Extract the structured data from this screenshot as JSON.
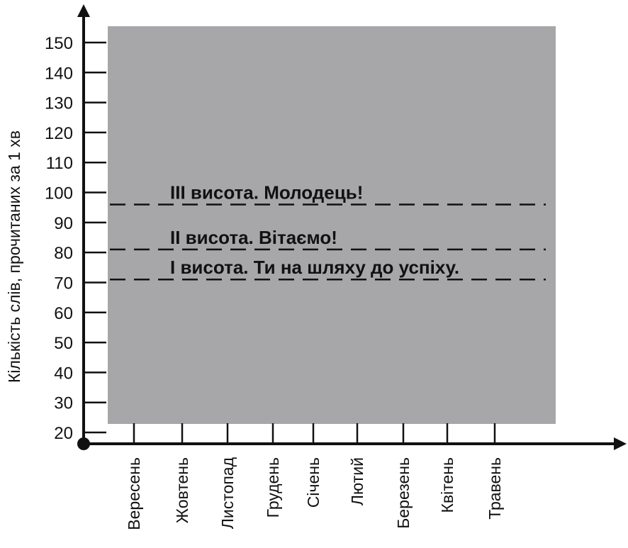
{
  "chart_data": {
    "type": "line",
    "title": "",
    "xlabel": "",
    "ylabel": "Кількість слів, прочитаних за 1 хв",
    "categories": [
      "Вересень",
      "Жовтень",
      "Листопад",
      "Грудень",
      "Січень",
      "Лютий",
      "Березень",
      "Квітень",
      "Травень"
    ],
    "y_ticks": [
      "150",
      "140",
      "130",
      "120",
      "110",
      "100",
      "90",
      "80",
      "70",
      "60",
      "50",
      "40",
      "30",
      "20"
    ],
    "y_tick_values": [
      150,
      140,
      130,
      120,
      110,
      100,
      90,
      80,
      70,
      60,
      50,
      40,
      30,
      20
    ],
    "ylim": [
      20,
      150
    ],
    "series": [],
    "levels": [
      {
        "text": "III висота. Молодець!",
        "value": 96
      },
      {
        "text": "II висота. Вітаємо!",
        "value": 81
      },
      {
        "text": "І висота. Ти на шляху до успіху.",
        "value": 71
      }
    ],
    "colors": {
      "plot_background": "#a7a7aa",
      "axis": "#111111",
      "level_line": "#111111"
    },
    "grid": false
  }
}
